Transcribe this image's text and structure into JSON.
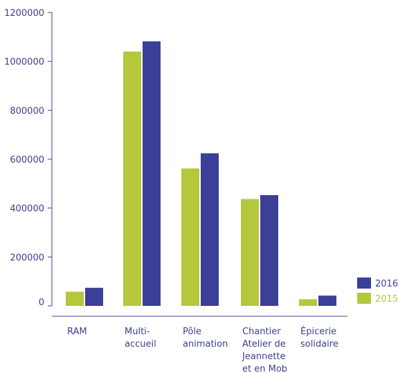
{
  "chart_data": {
    "type": "bar",
    "categories": [
      [
        "RAM"
      ],
      [
        "Multi-",
        "accueil"
      ],
      [
        "Pôle",
        "animation"
      ],
      [
        "Chantier",
        "Atelier de",
        "Jeannette",
        "et en Mob"
      ],
      [
        "Épicerie",
        "solidaire"
      ]
    ],
    "series": [
      {
        "name": "2015",
        "color": "#b5c73a",
        "values": [
          58000,
          1040000,
          562000,
          437000,
          27000
        ]
      },
      {
        "name": "2016",
        "color": "#3b3f97",
        "values": [
          74000,
          1082000,
          624000,
          453000,
          42000
        ]
      }
    ],
    "y_ticks": [
      "1200000",
      "1000000",
      "800000",
      "600000",
      "400000",
      "200000",
      "0"
    ],
    "ylim": [
      0,
      1200000
    ],
    "axis_color": "#3a3f8f",
    "legend": {
      "placement": "right",
      "order": [
        "2016",
        "2015"
      ]
    },
    "grid": false
  }
}
